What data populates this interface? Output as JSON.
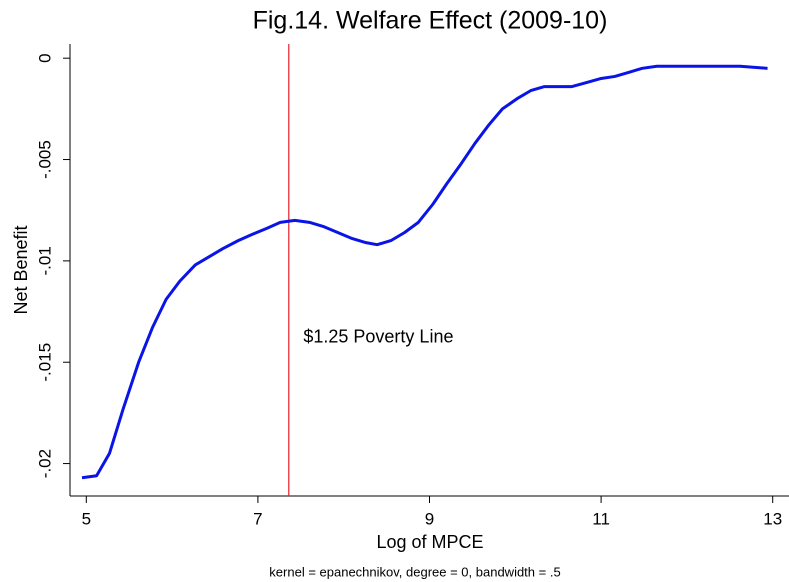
{
  "chart_data": {
    "type": "line",
    "title": "Fig.14. Welfare Effect (2009-10)",
    "x_label": "Log of MPCE",
    "y_label": "Net Benefit",
    "note": "kernel = epanechnikov, degree = 0, bandwidth = .5",
    "xlim": [
      4.81,
      13.19
    ],
    "ylim": [
      -0.0216,
      0.0007
    ],
    "xticks": [
      5,
      7,
      9,
      11,
      13
    ],
    "yticks": [
      0,
      {
        "value": -0.005,
        "label": "-.005"
      },
      {
        "value": -0.01,
        "label": "-.01"
      },
      {
        "value": -0.015,
        "label": "-.015"
      },
      {
        "value": -0.02,
        "label": "-.02"
      }
    ],
    "xline": {
      "value": 7.36,
      "color": "#e8202a"
    },
    "annotation": {
      "text": "$1.25 Poverty Line",
      "x": 7.53,
      "y": -0.0138
    },
    "series": [
      {
        "color": "#0a14e6",
        "x": [
          4.95,
          5.12,
          5.27,
          5.43,
          5.61,
          5.77,
          5.93,
          6.09,
          6.27,
          6.43,
          6.59,
          6.77,
          6.93,
          7.1,
          7.26,
          7.43,
          7.6,
          7.76,
          7.93,
          8.1,
          8.26,
          8.39,
          8.55,
          8.71,
          8.87,
          9.04,
          9.2,
          9.37,
          9.53,
          9.69,
          9.85,
          10.02,
          10.18,
          10.34,
          10.51,
          10.66,
          10.83,
          11.0,
          11.16,
          11.32,
          11.48,
          11.65,
          12.15,
          12.62,
          12.94
        ],
        "values": [
          -0.0207,
          -0.0206,
          -0.0195,
          -0.0173,
          -0.015,
          -0.0133,
          -0.0119,
          -0.011,
          -0.0102,
          -0.0098,
          -0.0094,
          -0.009,
          -0.0087,
          -0.0084,
          -0.0081,
          -0.008,
          -0.0081,
          -0.0083,
          -0.0086,
          -0.0089,
          -0.0091,
          -0.0092,
          -0.009,
          -0.0086,
          -0.0081,
          -0.0072,
          -0.0062,
          -0.0052,
          -0.0042,
          -0.0033,
          -0.0025,
          -0.002,
          -0.0016,
          -0.0014,
          -0.0014,
          -0.0014,
          -0.0012,
          -0.001,
          -0.0009,
          -0.0007,
          -0.0005,
          -0.0004,
          -0.0004,
          -0.0004,
          -0.0005
        ]
      }
    ]
  }
}
